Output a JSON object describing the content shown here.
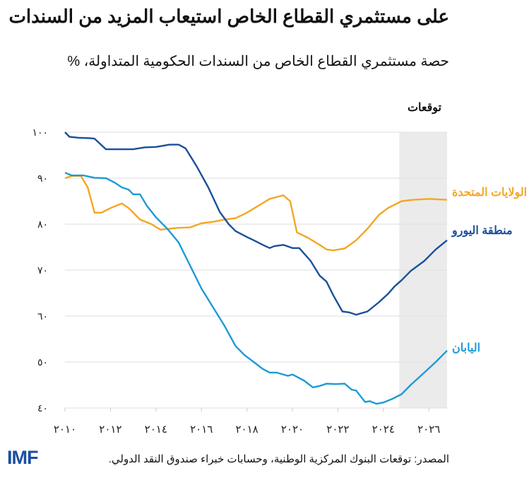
{
  "title": "على مستثمري القطاع الخاص استيعاب المزيد من السندات",
  "subtitle": "حصة مستثمري القطاع الخاص من السندات الحكومية المتداولة، %",
  "source": "المصدر: توقعات البنوك المركزية الوطنية، وحسابات خبراء صندوق النقد الدولي.",
  "logo": "IMF",
  "chart_data": {
    "type": "line",
    "title": "على مستثمري القطاع الخاص استيعاب المزيد من السندات",
    "subtitle": "حصة مستثمري القطاع الخاص من السندات الحكومية المتداولة، %",
    "xlim": [
      2010,
      2026.8
    ],
    "ylim": [
      40,
      100
    ],
    "grid": true,
    "forecast_region": {
      "label": "توقعات",
      "from": 2024.7,
      "to": 2026.8,
      "color": "#ebebeb"
    },
    "x_ticks": [
      {
        "value": 2010,
        "label": "٢٠١٠"
      },
      {
        "value": 2012,
        "label": "٢٠١٢"
      },
      {
        "value": 2014,
        "label": "٢٠١٤"
      },
      {
        "value": 2016,
        "label": "٢٠١٦"
      },
      {
        "value": 2018,
        "label": "٢٠١٨"
      },
      {
        "value": 2020,
        "label": "٢٠٢٠"
      },
      {
        "value": 2022,
        "label": "٢٠٢٢"
      },
      {
        "value": 2024,
        "label": "٢٠٢٤"
      },
      {
        "value": 2026,
        "label": "٢٠٢٦"
      }
    ],
    "y_ticks": [
      {
        "value": 100,
        "label": "١٠٠"
      },
      {
        "value": 90,
        "label": "٩٠"
      },
      {
        "value": 80,
        "label": "٨٠"
      },
      {
        "value": 70,
        "label": "٧٠"
      },
      {
        "value": 60,
        "label": "٦٠"
      },
      {
        "value": 50,
        "label": "٥٠"
      },
      {
        "value": 40,
        "label": "٤٠"
      }
    ],
    "series": [
      {
        "name": "الولايات المتحدة",
        "color": "#f5a623",
        "x": [
          2010,
          2010.3,
          2010.7,
          2011,
          2011.3,
          2011.6,
          2012,
          2012.5,
          2012.8,
          2013.3,
          2013.8,
          2014.2,
          2014.6,
          2015,
          2015.5,
          2016,
          2016.5,
          2017,
          2017.5,
          2018,
          2018.5,
          2019,
          2019.6,
          2019.9,
          2020.2,
          2020.7,
          2021.2,
          2021.5,
          2021.8,
          2022.3,
          2022.8,
          2023.3,
          2023.8,
          2024.2,
          2024.8,
          2025.3,
          2026,
          2026.8
        ],
        "y": [
          90,
          90.5,
          90.5,
          88,
          82.5,
          82.5,
          83.5,
          84.5,
          83.5,
          81,
          80,
          78.8,
          79,
          79.2,
          79.3,
          80.2,
          80.5,
          81,
          81.3,
          82.5,
          84,
          85.5,
          86.3,
          85,
          78.2,
          77,
          75.5,
          74.5,
          74.3,
          74.7,
          76.5,
          79,
          82,
          83.5,
          85,
          85.3,
          85.5,
          85.3
        ]
      },
      {
        "name": "منطقة اليورو",
        "color": "#1b4f9c",
        "x": [
          2010,
          2010.2,
          2010.6,
          2011.1,
          2011.3,
          2011.8,
          2012.2,
          2013,
          2013.5,
          2014,
          2014.6,
          2015,
          2015.3,
          2015.8,
          2016.3,
          2016.8,
          2017.2,
          2017.5,
          2018,
          2018.3,
          2018.7,
          2019,
          2019.2,
          2019.6,
          2020,
          2020.3,
          2020.8,
          2021.2,
          2021.5,
          2021.8,
          2022.2,
          2022.5,
          2022.8,
          2023.3,
          2023.8,
          2024.2,
          2024.5,
          2024.8,
          2025.2,
          2025.8,
          2026.3,
          2026.8
        ],
        "y": [
          100,
          99,
          98.8,
          98.7,
          98.6,
          96.3,
          96.3,
          96.3,
          96.7,
          96.8,
          97.3,
          97.3,
          96.5,
          92.5,
          88,
          82.7,
          80,
          78.5,
          77.2,
          76.5,
          75.5,
          74.8,
          75.2,
          75.5,
          74.8,
          74.8,
          72,
          68.8,
          67.5,
          64.5,
          61,
          60.8,
          60.3,
          61,
          63,
          64.8,
          66.5,
          67.8,
          69.8,
          72,
          74.5,
          76.5
        ]
      },
      {
        "name": "اليابان",
        "color": "#1e9ad6",
        "x": [
          2010,
          2010.3,
          2010.8,
          2011.3,
          2011.8,
          2012.2,
          2012.5,
          2012.8,
          2013,
          2013.3,
          2013.6,
          2014,
          2014.5,
          2015,
          2015.5,
          2016,
          2016.5,
          2017,
          2017.5,
          2017.9,
          2018.3,
          2018.7,
          2019,
          2019.3,
          2019.8,
          2020,
          2020.5,
          2020.9,
          2021.2,
          2021.5,
          2021.9,
          2022.3,
          2022.6,
          2022.8,
          2023.2,
          2023.4,
          2023.7,
          2024,
          2024.4,
          2024.8,
          2025.2,
          2025.8,
          2026.3,
          2026.8
        ],
        "y": [
          91.2,
          90.6,
          90.6,
          90.1,
          90,
          89,
          88,
          87.5,
          86.5,
          86.5,
          84,
          81.5,
          79,
          76,
          71,
          66,
          62,
          58,
          53.5,
          51.5,
          50,
          48.5,
          47.7,
          47.7,
          47,
          47.3,
          46,
          44.5,
          44.8,
          45.3,
          45.2,
          45.3,
          44,
          43.8,
          41.3,
          41.5,
          40.9,
          41.2,
          42,
          43,
          45,
          47.7,
          50,
          52.5
        ]
      }
    ]
  }
}
